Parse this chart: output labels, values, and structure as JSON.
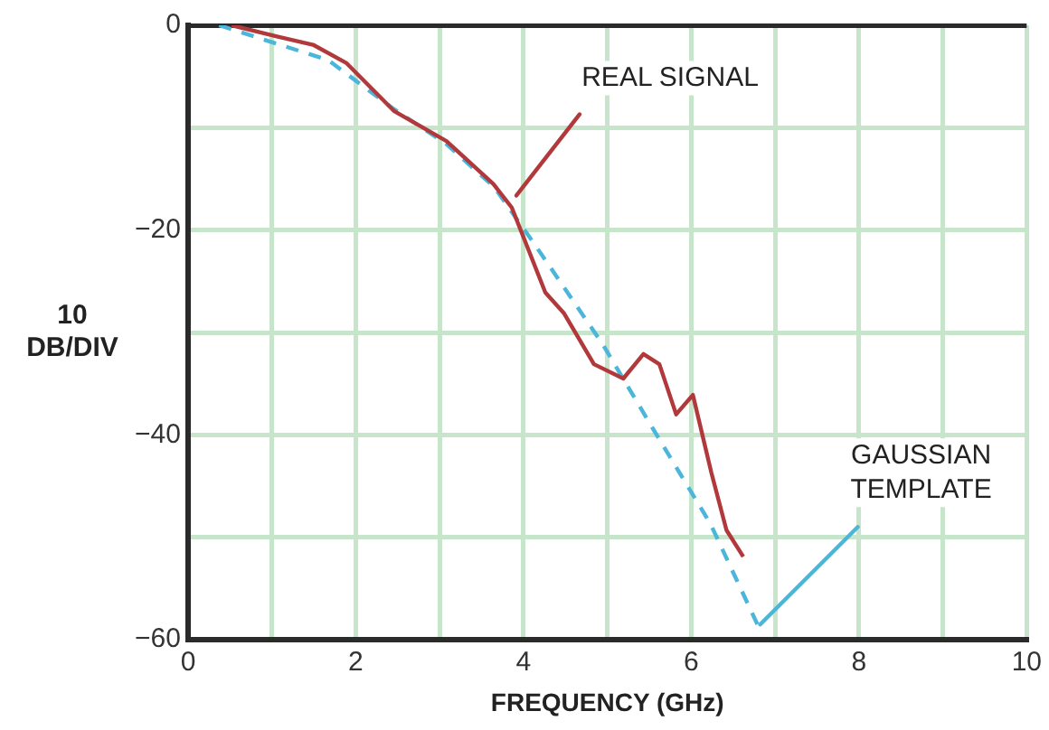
{
  "chart_data": {
    "type": "line",
    "xlabel": "FREQUENCY (GHz)",
    "ylabel": "10\nDB/DIV",
    "xlim": [
      0,
      10
    ],
    "xticks": [
      0,
      {
        "value": 1,
        "label": null
      },
      2,
      {
        "value": 3,
        "label": null
      },
      4,
      {
        "value": 5,
        "label": null
      },
      6,
      {
        "value": 7,
        "label": null
      },
      8,
      {
        "value": 9,
        "label": null
      },
      10
    ],
    "ylim": [
      -60,
      0
    ],
    "yticks": [
      {
        "value": -60,
        "label": "−60"
      },
      {
        "value": -50,
        "label": null
      },
      {
        "value": -40,
        "label": "−40"
      },
      {
        "value": -30,
        "label": null
      },
      {
        "value": -20,
        "label": "−20"
      },
      {
        "value": -10,
        "label": null
      },
      0
    ],
    "grid": true,
    "legend": false,
    "marker": "none",
    "series": [
      {
        "color": "#b2393b",
        "line_style": "solid",
        "x": [
          0.52,
          1.06,
          1.49,
          1.89,
          2.46,
          3.08,
          3.64,
          3.86,
          4.26,
          4.48,
          4.84,
          5.19,
          5.43,
          5.62,
          5.82,
          6.02,
          6.24,
          6.42,
          6.62
        ],
        "values": [
          0,
          -1.1,
          -1.9,
          -3.7,
          -8.4,
          -11.3,
          -15.5,
          -17.8,
          -26.1,
          -28.1,
          -33.1,
          -34.5,
          -32.1,
          -33.1,
          -38.0,
          -36.1,
          -43.7,
          -49.3,
          -51.9
        ]
      },
      {
        "color": "#4cb6da",
        "line_style": "dashed",
        "x": [
          0.37,
          1.67,
          2.44,
          3.08,
          3.65,
          4.15,
          4.94,
          5.58,
          6.23,
          6.8
        ],
        "values": [
          0,
          -3.4,
          -8.1,
          -11.6,
          -15.8,
          -21.6,
          -31.1,
          -39.9,
          -48.7,
          -58.7
        ]
      }
    ],
    "annotations": [
      {
        "text": "REAL SIGNAL",
        "x": 3.85,
        "y": -16.1
      },
      {
        "text": "GAUSSIAN\nTEMPLATE",
        "x": 6.8,
        "y": -58.7
      }
    ]
  }
}
